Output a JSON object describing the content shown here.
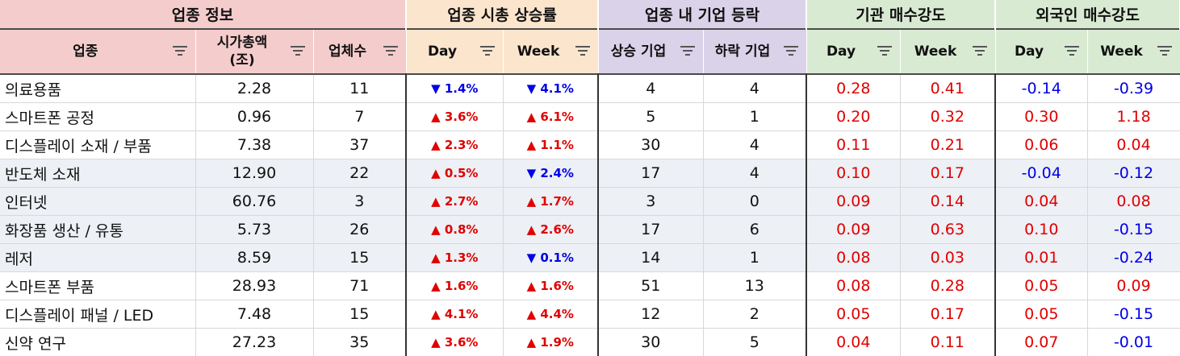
{
  "groups": {
    "info": "업종 정보",
    "mcap": "업종 시총 상승률",
    "breadth": "업종 내 기업 등락",
    "inst": "기관 매수강도",
    "foreign": "외국인 매수강도"
  },
  "columns": {
    "sector": "업종",
    "mcap_line1": "시가총액",
    "mcap_line2": "(조)",
    "count": "업체수",
    "day": "Day",
    "week": "Week",
    "rising": "상승 기업",
    "falling": "하락 기업",
    "inst_day": "Day",
    "inst_week": "Week",
    "foreign_day": "Day",
    "foreign_week": "Week"
  },
  "colors": {
    "up": "#e00000",
    "down": "#0000e6",
    "info_header": "#f4cccc",
    "mcap_header": "#fce5cd",
    "breadth_header": "#d9d2e9",
    "strength_header": "#d9ead3",
    "shaded_row": "#edf0f5"
  },
  "rows": [
    {
      "sector": "의료용품",
      "mcap": "2.28",
      "count": "11",
      "day": {
        "dir": "down",
        "text": "▼ 1.4%"
      },
      "week": {
        "dir": "down",
        "text": "▼ 4.1%"
      },
      "rising": "4",
      "falling": "4",
      "inst_day": "0.28",
      "inst_week": "0.41",
      "foreign_day": "-0.14",
      "foreign_week": "-0.39"
    },
    {
      "sector": "스마트폰 공정",
      "mcap": "0.96",
      "count": "7",
      "day": {
        "dir": "up",
        "text": "▲ 3.6%"
      },
      "week": {
        "dir": "up",
        "text": "▲ 6.1%"
      },
      "rising": "5",
      "falling": "1",
      "inst_day": "0.20",
      "inst_week": "0.32",
      "foreign_day": "0.30",
      "foreign_week": "1.18"
    },
    {
      "sector": "디스플레이 소재 / 부품",
      "mcap": "7.38",
      "count": "37",
      "day": {
        "dir": "up",
        "text": "▲ 2.3%"
      },
      "week": {
        "dir": "up",
        "text": "▲ 1.1%"
      },
      "rising": "30",
      "falling": "4",
      "inst_day": "0.11",
      "inst_week": "0.21",
      "foreign_day": "0.06",
      "foreign_week": "0.04"
    },
    {
      "sector": "반도체 소재",
      "mcap": "12.90",
      "count": "22",
      "day": {
        "dir": "up",
        "text": "▲ 0.5%"
      },
      "week": {
        "dir": "down",
        "text": "▼ 2.4%"
      },
      "rising": "17",
      "falling": "4",
      "inst_day": "0.10",
      "inst_week": "0.17",
      "foreign_day": "-0.04",
      "foreign_week": "-0.12"
    },
    {
      "sector": "인터넷",
      "mcap": "60.76",
      "count": "3",
      "day": {
        "dir": "up",
        "text": "▲ 2.7%"
      },
      "week": {
        "dir": "up",
        "text": "▲ 1.7%"
      },
      "rising": "3",
      "falling": "0",
      "inst_day": "0.09",
      "inst_week": "0.14",
      "foreign_day": "0.04",
      "foreign_week": "0.08"
    },
    {
      "sector": "화장품 생산 / 유통",
      "mcap": "5.73",
      "count": "26",
      "day": {
        "dir": "up",
        "text": "▲ 0.8%"
      },
      "week": {
        "dir": "up",
        "text": "▲ 2.6%"
      },
      "rising": "17",
      "falling": "6",
      "inst_day": "0.09",
      "inst_week": "0.63",
      "foreign_day": "0.10",
      "foreign_week": "-0.15"
    },
    {
      "sector": "레저",
      "mcap": "8.59",
      "count": "15",
      "day": {
        "dir": "up",
        "text": "▲ 1.3%"
      },
      "week": {
        "dir": "down",
        "text": "▼ 0.1%"
      },
      "rising": "14",
      "falling": "1",
      "inst_day": "0.08",
      "inst_week": "0.03",
      "foreign_day": "0.01",
      "foreign_week": "-0.24"
    },
    {
      "sector": "스마트폰 부품",
      "mcap": "28.93",
      "count": "71",
      "day": {
        "dir": "up",
        "text": "▲ 1.6%"
      },
      "week": {
        "dir": "up",
        "text": "▲ 1.6%"
      },
      "rising": "51",
      "falling": "13",
      "inst_day": "0.08",
      "inst_week": "0.28",
      "foreign_day": "0.05",
      "foreign_week": "0.09"
    },
    {
      "sector": "디스플레이 패널 / LED",
      "mcap": "7.48",
      "count": "15",
      "day": {
        "dir": "up",
        "text": "▲ 4.1%"
      },
      "week": {
        "dir": "up",
        "text": "▲ 4.4%"
      },
      "rising": "12",
      "falling": "2",
      "inst_day": "0.05",
      "inst_week": "0.17",
      "foreign_day": "0.05",
      "foreign_week": "-0.15"
    },
    {
      "sector": "신약 연구",
      "mcap": "27.23",
      "count": "35",
      "day": {
        "dir": "up",
        "text": "▲ 3.6%"
      },
      "week": {
        "dir": "up",
        "text": "▲ 1.9%"
      },
      "rising": "30",
      "falling": "5",
      "inst_day": "0.04",
      "inst_week": "0.11",
      "foreign_day": "0.07",
      "foreign_week": "-0.01"
    }
  ]
}
